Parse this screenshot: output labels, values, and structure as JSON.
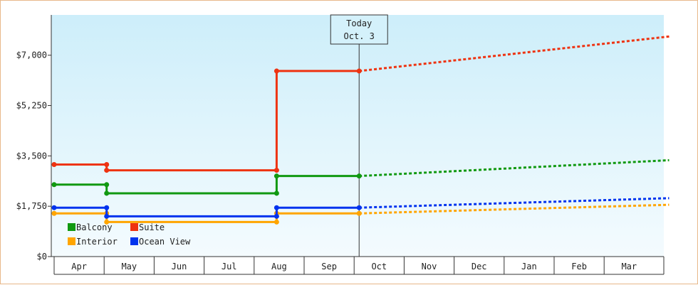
{
  "chart_data": {
    "type": "line",
    "title": "",
    "xlabel": "",
    "ylabel": "",
    "ylim": [
      0,
      8400
    ],
    "y_ticks": [
      0,
      1750,
      3500,
      5250,
      7000
    ],
    "y_tick_labels": [
      "$0",
      "$1,750",
      "$3,500",
      "$5,250",
      "$7,000"
    ],
    "months": [
      "Apr",
      "May",
      "Jun",
      "Jul",
      "Aug",
      "Sep",
      "Oct",
      "Nov",
      "Dec",
      "Jan",
      "Feb",
      "Mar"
    ],
    "today": {
      "line1": "Today",
      "line2": "Oct. 3",
      "month_index": 6.1
    },
    "series": [
      {
        "name": "Balcony",
        "color": "#119911",
        "points": [
          [
            0,
            2500
          ],
          [
            1.05,
            2500
          ],
          [
            1.05,
            2200
          ],
          [
            4.45,
            2200
          ],
          [
            4.45,
            2800
          ],
          [
            6.1,
            2800
          ]
        ],
        "projection": [
          [
            6.1,
            2800
          ],
          [
            12.3,
            3350
          ]
        ]
      },
      {
        "name": "Suite",
        "color": "#ee3311",
        "points": [
          [
            0,
            3200
          ],
          [
            1.05,
            3200
          ],
          [
            1.05,
            3000
          ],
          [
            4.45,
            3000
          ],
          [
            4.45,
            6450
          ],
          [
            6.1,
            6450
          ]
        ],
        "projection": [
          [
            6.1,
            6450
          ],
          [
            12.3,
            7650
          ]
        ]
      },
      {
        "name": "Interior",
        "color": "#ffa500",
        "points": [
          [
            0,
            1500
          ],
          [
            1.05,
            1500
          ],
          [
            1.05,
            1200
          ],
          [
            4.45,
            1200
          ],
          [
            4.45,
            1500
          ],
          [
            6.1,
            1500
          ]
        ],
        "projection": [
          [
            6.1,
            1500
          ],
          [
            12.3,
            1800
          ]
        ]
      },
      {
        "name": "Ocean View",
        "color": "#0033ee",
        "points": [
          [
            0,
            1700
          ],
          [
            1.05,
            1700
          ],
          [
            1.05,
            1400
          ],
          [
            4.45,
            1400
          ],
          [
            4.45,
            1700
          ],
          [
            6.1,
            1700
          ]
        ],
        "projection": [
          [
            6.1,
            1700
          ],
          [
            12.3,
            2030
          ]
        ]
      }
    ],
    "grid": false,
    "legend_position": "bottom-left"
  }
}
